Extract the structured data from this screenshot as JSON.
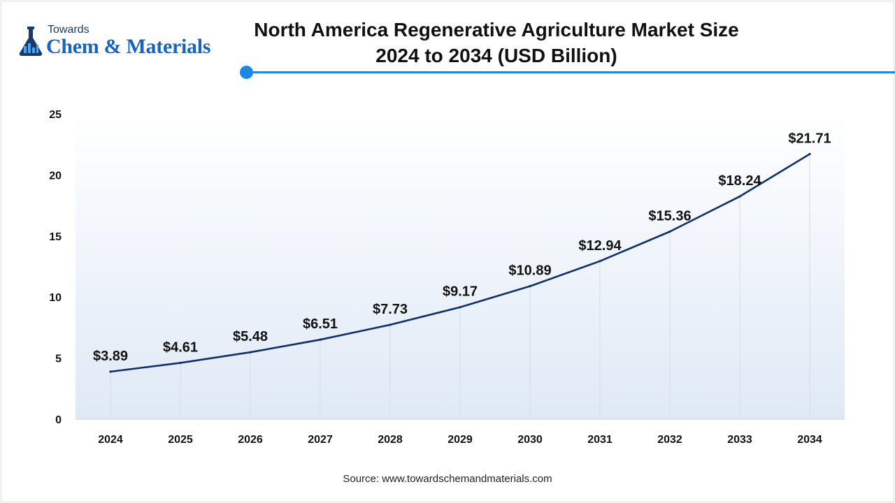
{
  "brand": {
    "towards": "Towards",
    "name": "Chem & Materials"
  },
  "header": {
    "title_line1": "North America Regenerative Agriculture Market Size",
    "title_line2": "2024 to 2034 (USD Billion)"
  },
  "colors": {
    "line": "#0d2f6e",
    "accent": "#1e88e5",
    "area_top": "#ffffff",
    "area_bottom": "#dfe9f6"
  },
  "chart_data": {
    "type": "line",
    "x": [
      "2024",
      "2025",
      "2026",
      "2027",
      "2028",
      "2029",
      "2030",
      "2031",
      "2032",
      "2033",
      "2034"
    ],
    "series": [
      {
        "values": [
          3.89,
          4.61,
          5.48,
          6.51,
          7.73,
          9.17,
          10.89,
          12.94,
          15.36,
          18.24,
          21.71
        ],
        "labels": [
          "$3.89",
          "$4.61",
          "$5.48",
          "$6.51",
          "$7.73",
          "$9.17",
          "$10.89",
          "$12.94",
          "$15.36",
          "$18.24",
          "$21.71"
        ]
      }
    ],
    "yticks": [
      0,
      5,
      10,
      15,
      20,
      25
    ],
    "ylim": [
      0,
      25
    ],
    "grid": false
  },
  "footer": {
    "source": "Source: www.towardschemandmaterials.com"
  }
}
